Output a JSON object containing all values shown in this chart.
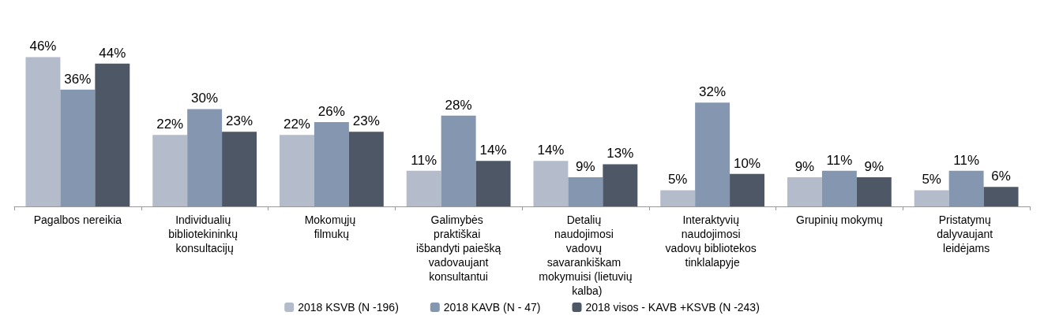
{
  "chart_data": {
    "type": "bar",
    "categories": [
      "Pagalbos nereikia",
      "Individualių bibliotekininkų konsultacijų",
      "Mokomųjų filmukų",
      "Galimybės praktiškai išbandyti paiešką vadovaujant konsultantui",
      "Detalių naudojimosi vadovų savarankiškam mokymuisi (lietuvių kalba)",
      "Interaktyvių naudojimosi vadovų bibliotekos tinklalapyje",
      "Grupinių mokymų",
      "Pristatymų dalyvaujant leidėjams"
    ],
    "series": [
      {
        "name": "2018 KSVB (N -196)",
        "color": "#b4bccc",
        "values": [
          46,
          22,
          22,
          11,
          14,
          5,
          9,
          5
        ],
        "value_labels": [
          "46%",
          "22%",
          "22%",
          "11%",
          "14%",
          "5%",
          "9%",
          "5%"
        ]
      },
      {
        "name": "2018 KAVB (N - 47)",
        "color": "#8496b0",
        "values": [
          36,
          30,
          26,
          28,
          9,
          32,
          11,
          11
        ],
        "value_labels": [
          "36%",
          "30%",
          "26%",
          "28%",
          "9%",
          "32%",
          "11%",
          "11%"
        ]
      },
      {
        "name": "2018 visos - KAVB +KSVB (N -243)",
        "color": "#4d5766",
        "values": [
          44,
          23,
          23,
          14,
          13,
          10,
          9,
          6
        ],
        "value_labels": [
          "44%",
          "23%",
          "23%",
          "14%",
          "13%",
          "10%",
          "9%",
          "6%"
        ]
      }
    ],
    "legend": "bottom"
  }
}
